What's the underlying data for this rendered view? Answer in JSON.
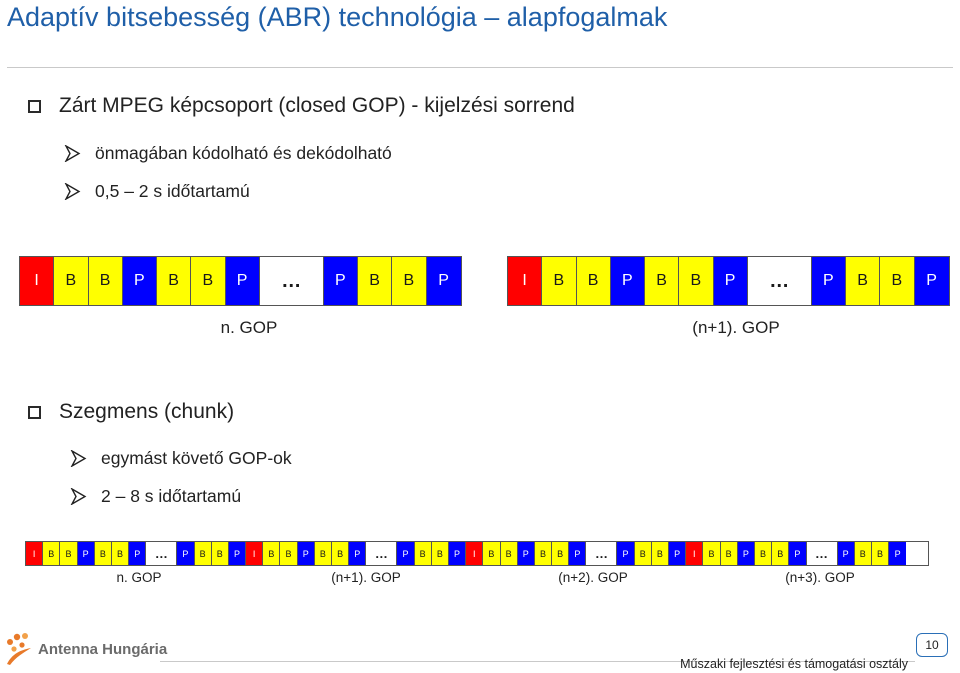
{
  "title": "Adaptív bitsebesség (ABR) technológia – alapfogalmak",
  "section1": {
    "heading": "Zárt MPEG képcsoport (closed GOP) - kijelzési sorrend",
    "items": [
      "önmagában kódolható és dekódolható",
      "0,5 – 2 s időtartamú"
    ]
  },
  "gop_frames": [
    "I",
    "B",
    "B",
    "P",
    "B",
    "B",
    "P",
    "…",
    "P",
    "B",
    "B",
    "P"
  ],
  "gop_labels": [
    "n. GOP",
    "(n+1). GOP"
  ],
  "section2": {
    "heading": "Szegmens (chunk)",
    "items": [
      "egymást követő GOP-ok",
      "2 – 8 s időtartamú"
    ]
  },
  "segment_labels": [
    "n. GOP",
    "(n+1). GOP",
    "(n+2). GOP",
    "(n+3). GOP"
  ],
  "footer": {
    "logo_text": "Antenna Hungária",
    "department": "Műszaki fejlesztési és támogatási osztály",
    "page_number": "10"
  },
  "colors": {
    "I": "#ff0000",
    "B": "#ffff00",
    "P": "#0000ff",
    "title": "#1f5fa8"
  },
  "icons": {
    "bullet1": "square-bullet-icon",
    "bullet2": "arrow-bullet-icon",
    "logo": "antenna-hungaria-logo-icon"
  }
}
